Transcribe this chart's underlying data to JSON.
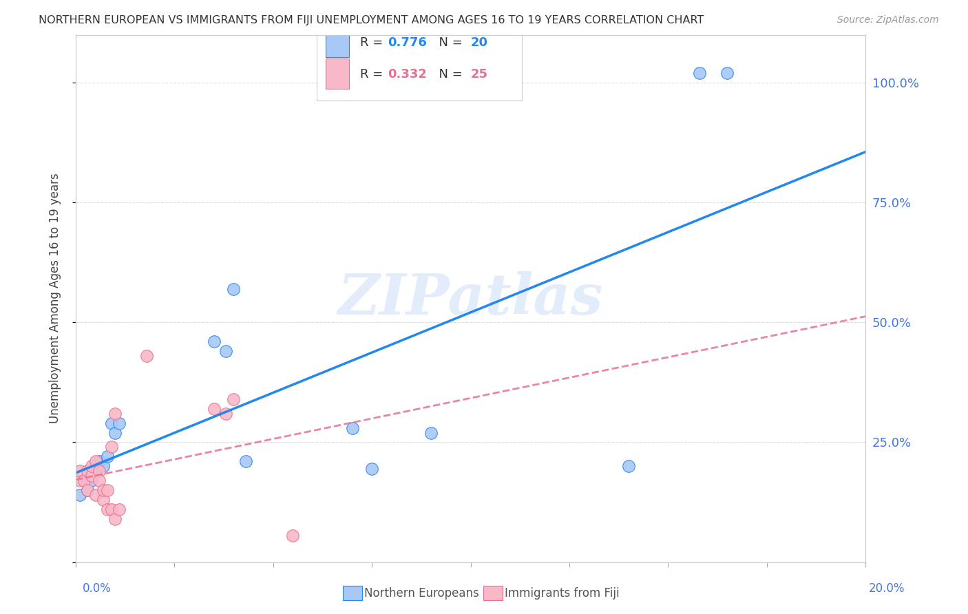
{
  "title": "NORTHERN EUROPEAN VS IMMIGRANTS FROM FIJI UNEMPLOYMENT AMONG AGES 16 TO 19 YEARS CORRELATION CHART",
  "source": "Source: ZipAtlas.com",
  "ylabel": "Unemployment Among Ages 16 to 19 years",
  "xlim": [
    0.0,
    0.2
  ],
  "ylim": [
    0.0,
    1.1
  ],
  "yticks": [
    0.0,
    0.25,
    0.5,
    0.75,
    1.0
  ],
  "ytick_labels": [
    "",
    "25.0%",
    "50.0%",
    "75.0%",
    "100.0%"
  ],
  "R_blue": 0.776,
  "N_blue": 20,
  "R_pink": 0.332,
  "N_pink": 25,
  "blue_color": "#a8c8f8",
  "blue_line_color": "#2288ee",
  "pink_color": "#f8b8c8",
  "pink_line_color": "#e87090",
  "blue_points_x": [
    0.001,
    0.003,
    0.004,
    0.005,
    0.006,
    0.007,
    0.008,
    0.009,
    0.01,
    0.011,
    0.035,
    0.038,
    0.04,
    0.043,
    0.07,
    0.075,
    0.09,
    0.14,
    0.158,
    0.165
  ],
  "blue_points_y": [
    0.14,
    0.15,
    0.17,
    0.19,
    0.21,
    0.2,
    0.22,
    0.29,
    0.27,
    0.29,
    0.46,
    0.44,
    0.57,
    0.21,
    0.28,
    0.195,
    0.27,
    0.2,
    1.02,
    1.02
  ],
  "pink_points_x": [
    0.001,
    0.001,
    0.002,
    0.003,
    0.003,
    0.004,
    0.004,
    0.005,
    0.005,
    0.006,
    0.006,
    0.007,
    0.007,
    0.008,
    0.008,
    0.009,
    0.009,
    0.01,
    0.01,
    0.011,
    0.018,
    0.035,
    0.038,
    0.04,
    0.055
  ],
  "pink_points_y": [
    0.17,
    0.19,
    0.17,
    0.15,
    0.19,
    0.18,
    0.2,
    0.14,
    0.21,
    0.19,
    0.17,
    0.13,
    0.15,
    0.11,
    0.15,
    0.11,
    0.24,
    0.31,
    0.09,
    0.11,
    0.43,
    0.32,
    0.31,
    0.34,
    0.055
  ],
  "watermark": "ZIPatlas",
  "background_color": "#ffffff",
  "grid_color": "#dddddd"
}
